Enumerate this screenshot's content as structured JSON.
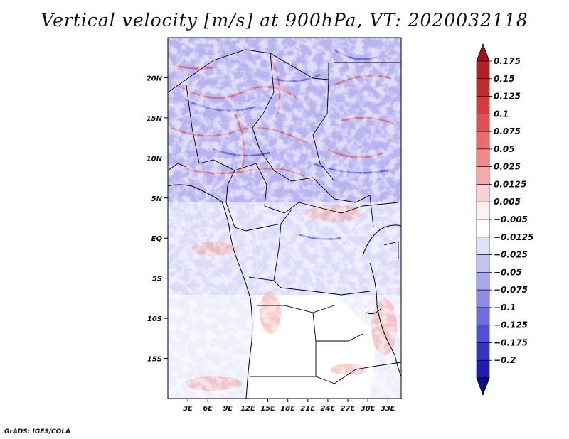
{
  "page": {
    "title": "Vertical velocity [m/s] at 900hPa, VT: 2020032118",
    "footer": "GrADS: IGES/COLA"
  },
  "chart_data": {
    "type": "heatmap",
    "title": "Vertical velocity [m/s] at 900hPa, VT: 2020032118",
    "variable": "Vertical velocity",
    "units": "m/s",
    "level": "900hPa",
    "valid_time": "2020032118",
    "x_axis": {
      "range": [
        0,
        35
      ],
      "ticks": [
        {
          "value": 3,
          "label": "3E"
        },
        {
          "value": 6,
          "label": "6E"
        },
        {
          "value": 9,
          "label": "9E"
        },
        {
          "value": 12,
          "label": "12E"
        },
        {
          "value": 15,
          "label": "15E"
        },
        {
          "value": 18,
          "label": "18E"
        },
        {
          "value": 21,
          "label": "21E"
        },
        {
          "value": 24,
          "label": "24E"
        },
        {
          "value": 27,
          "label": "27E"
        },
        {
          "value": 30,
          "label": "30E"
        },
        {
          "value": 33,
          "label": "33E"
        }
      ]
    },
    "y_axis": {
      "range": [
        -20,
        25
      ],
      "ticks": [
        {
          "value": 20,
          "label": "20N"
        },
        {
          "value": 15,
          "label": "15N"
        },
        {
          "value": 10,
          "label": "10N"
        },
        {
          "value": 5,
          "label": "5N"
        },
        {
          "value": 0,
          "label": "EQ"
        },
        {
          "value": -5,
          "label": "5S"
        },
        {
          "value": -10,
          "label": "10S"
        },
        {
          "value": -15,
          "label": "15S"
        }
      ]
    },
    "colorbar": {
      "labels": [
        "0.175",
        "0.15",
        "0.125",
        "0.1",
        "0.075",
        "0.05",
        "0.025",
        "0.0125",
        "0.005",
        "−0.005",
        "−0.0125",
        "−0.025",
        "−0.05",
        "−0.075",
        "−0.1",
        "−0.125",
        "−0.175",
        "−0.2"
      ],
      "colors": [
        "#a50f15",
        "#b31e22",
        "#c42c2c",
        "#d43b3b",
        "#e05252",
        "#e86c6c",
        "#f08a8a",
        "#f6aaaa",
        "#fad2d2",
        "#fdf0f0",
        "#ffffff",
        "#e0e0fa",
        "#c4c4f4",
        "#a8a8ee",
        "#8c8ce6",
        "#6e6ede",
        "#5050d2",
        "#3434c2",
        "#1e1eaa",
        "#0c0c8c"
      ]
    }
  }
}
